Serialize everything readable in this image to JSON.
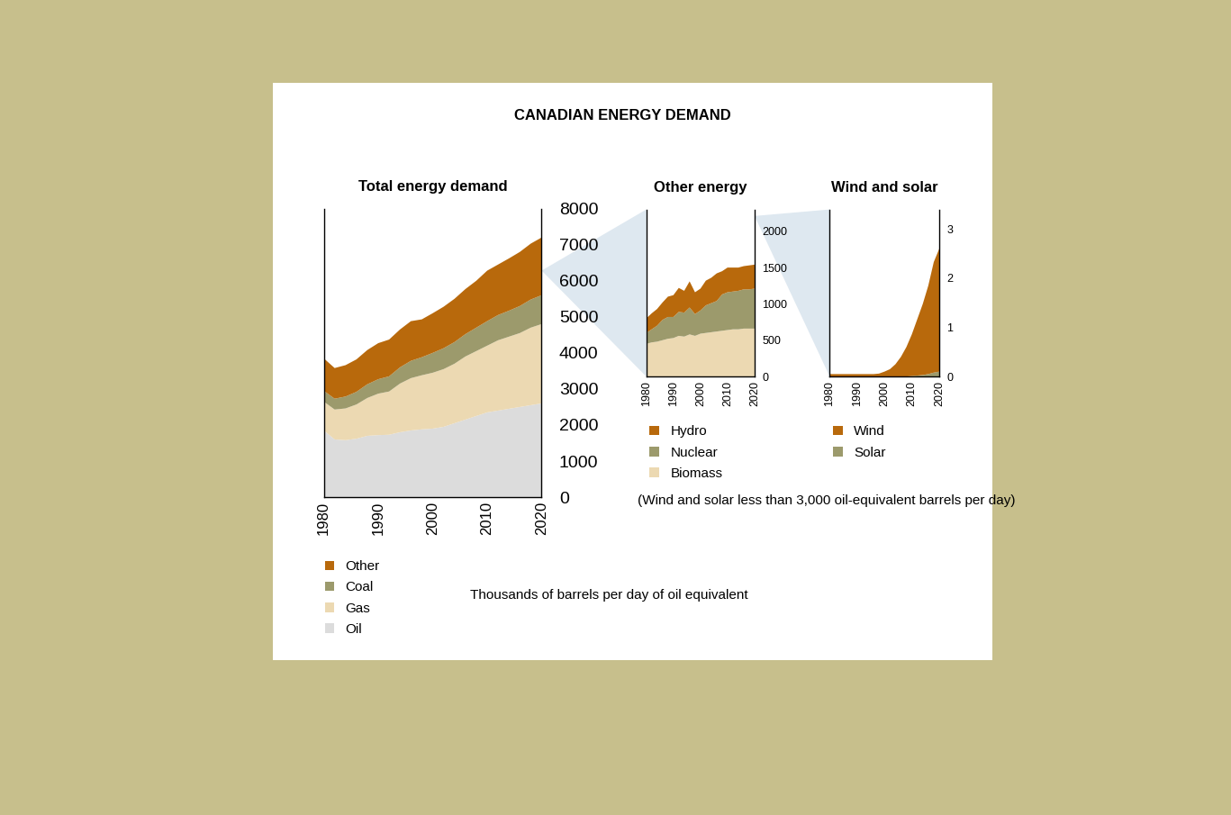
{
  "title": "CANADIAN ENERGY DEMAND",
  "unit_label": "Thousands of barrels per day of oil equivalent",
  "note": "(Wind and solar less than 3,000 oil-equivalent barrels per day)",
  "chart_data": [
    {
      "type": "area",
      "stacked": true,
      "title": "Total energy demand",
      "legend": "bottom",
      "x": [
        1980,
        1982,
        1984,
        1986,
        1988,
        1990,
        1992,
        1994,
        1996,
        1998,
        2000,
        2002,
        2004,
        2006,
        2008,
        2010,
        2012,
        2014,
        2016,
        2018,
        2020
      ],
      "xlim": [
        1980,
        2020
      ],
      "xticks": [
        1980,
        1990,
        2000,
        2010,
        2020
      ],
      "ylim": [
        0,
        8000
      ],
      "yticks": [
        0,
        1000,
        2000,
        3000,
        4000,
        5000,
        6000,
        7000,
        8000
      ],
      "series": [
        {
          "name": "Oil",
          "color": "#dcdcdc",
          "values": [
            1850,
            1600,
            1580,
            1620,
            1700,
            1720,
            1730,
            1800,
            1850,
            1880,
            1900,
            1950,
            2050,
            2150,
            2250,
            2350,
            2400,
            2450,
            2500,
            2550,
            2600
          ]
        },
        {
          "name": "Gas",
          "color": "#ecd9b2",
          "values": [
            800,
            830,
            880,
            950,
            1050,
            1150,
            1200,
            1350,
            1450,
            1500,
            1550,
            1600,
            1650,
            1750,
            1800,
            1850,
            1950,
            2000,
            2050,
            2150,
            2200
          ]
        },
        {
          "name": "Coal",
          "color": "#9c9a6c",
          "values": [
            300,
            300,
            330,
            350,
            380,
            400,
            420,
            450,
            480,
            500,
            550,
            580,
            600,
            620,
            650,
            680,
            700,
            720,
            750,
            780,
            800
          ]
        },
        {
          "name": "Other",
          "color": "#b8690c",
          "values": [
            900,
            850,
            870,
            900,
            950,
            1000,
            1020,
            1050,
            1100,
            1050,
            1100,
            1150,
            1200,
            1250,
            1300,
            1400,
            1400,
            1450,
            1500,
            1550,
            1600
          ]
        }
      ]
    },
    {
      "type": "area",
      "stacked": true,
      "title": "Other energy",
      "legend": "bottom",
      "x": [
        1980,
        1982,
        1984,
        1986,
        1988,
        1990,
        1992,
        1994,
        1996,
        1998,
        2000,
        2002,
        2004,
        2006,
        2008,
        2010,
        2012,
        2014,
        2016,
        2018,
        2020
      ],
      "xlim": [
        1980,
        2020
      ],
      "xticks": [
        1980,
        1990,
        2000,
        2010,
        2020
      ],
      "ylim": [
        0,
        2300
      ],
      "yticks": [
        0,
        500,
        1000,
        1500,
        2000
      ],
      "series": [
        {
          "name": "Biomass",
          "color": "#ecd9b2",
          "values": [
            450,
            470,
            480,
            500,
            520,
            530,
            560,
            550,
            580,
            560,
            590,
            600,
            610,
            620,
            630,
            640,
            650,
            650,
            660,
            660,
            660
          ]
        },
        {
          "name": "Nuclear",
          "color": "#9c9a6c",
          "values": [
            150,
            180,
            220,
            280,
            300,
            290,
            330,
            330,
            370,
            300,
            320,
            380,
            400,
            420,
            500,
            520,
            520,
            530,
            540,
            540,
            550
          ]
        },
        {
          "name": "Hydro",
          "color": "#b8690c",
          "values": [
            200,
            220,
            230,
            240,
            280,
            300,
            330,
            300,
            360,
            300,
            300,
            340,
            350,
            380,
            320,
            340,
            330,
            320,
            320,
            330,
            330
          ]
        }
      ]
    },
    {
      "type": "area",
      "stacked": true,
      "title": "Wind and solar",
      "legend": "bottom",
      "x": [
        1980,
        1982,
        1984,
        1986,
        1988,
        1990,
        1992,
        1994,
        1996,
        1998,
        2000,
        2002,
        2004,
        2006,
        2008,
        2010,
        2012,
        2014,
        2016,
        2018,
        2020
      ],
      "xlim": [
        1980,
        2020
      ],
      "xticks": [
        1980,
        1990,
        2000,
        2010,
        2020
      ],
      "ylim": [
        0,
        3.4
      ],
      "yticks": [
        0,
        1,
        2,
        3
      ],
      "series": [
        {
          "name": "Solar",
          "color": "#9c9a6c",
          "values": [
            0,
            0,
            0,
            0,
            0,
            0,
            0,
            0,
            0,
            0,
            0,
            0,
            0,
            0,
            0,
            0.01,
            0.02,
            0.03,
            0.05,
            0.08,
            0.1
          ]
        },
        {
          "name": "Wind",
          "color": "#b8690c",
          "values": [
            0.05,
            0.05,
            0.05,
            0.05,
            0.05,
            0.05,
            0.05,
            0.05,
            0.05,
            0.06,
            0.1,
            0.15,
            0.25,
            0.4,
            0.6,
            0.85,
            1.15,
            1.45,
            1.8,
            2.25,
            2.5
          ]
        }
      ]
    }
  ]
}
